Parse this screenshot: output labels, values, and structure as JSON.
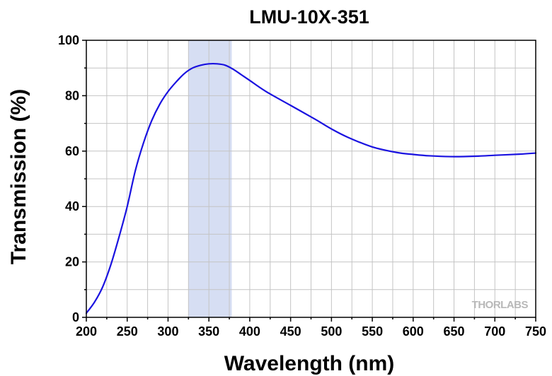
{
  "chart_data": {
    "type": "line",
    "title": "LMU-10X-351",
    "xlabel": "Wavelength (nm)",
    "ylabel": "Transmission (%)",
    "xlim": [
      200,
      750
    ],
    "ylim": [
      0,
      100
    ],
    "x_ticks": [
      "200",
      "250",
      "300",
      "350",
      "400",
      "450",
      "500",
      "550",
      "600",
      "650",
      "700",
      "750"
    ],
    "y_ticks": [
      "0",
      "20",
      "40",
      "60",
      "80",
      "100"
    ],
    "grid": true,
    "highlight_band": {
      "x_start": 325,
      "x_end": 378,
      "color": "#d6def3"
    },
    "watermark": "THORLABS",
    "series": [
      {
        "color": "#1a12e0",
        "x": [
          200,
          210,
          220,
          230,
          240,
          250,
          260,
          270,
          280,
          290,
          300,
          310,
          320,
          330,
          340,
          350,
          360,
          370,
          380,
          390,
          400,
          420,
          450,
          480,
          500,
          520,
          550,
          580,
          600,
          620,
          650,
          680,
          700,
          730,
          750
        ],
        "y": [
          1.5,
          5.5,
          11,
          19,
          29,
          40,
          53,
          63,
          71,
          77,
          81.5,
          85,
          88,
          90,
          91,
          91.5,
          91.5,
          91,
          89.5,
          87.5,
          85.5,
          81.5,
          76.5,
          71.5,
          68,
          65,
          61.5,
          59.5,
          58.8,
          58.3,
          58,
          58.2,
          58.5,
          58.9,
          59.3
        ]
      }
    ]
  }
}
